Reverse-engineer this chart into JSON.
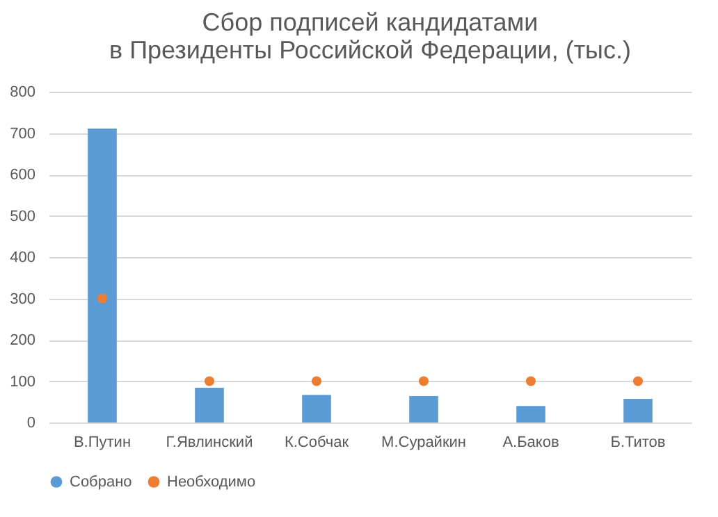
{
  "chart_data": {
    "type": "bar",
    "title": "Сбор подписей кандидатами\nв Президенты Российской Федерации, (тыс.)",
    "categories": [
      "В.Путин",
      "Г.Явлинский",
      "К.Собчак",
      "М.Сурайкин",
      "А.Баков",
      "Б.Титов"
    ],
    "series": [
      {
        "name": "Собрано",
        "color": "#5b9bd5",
        "values": [
          711,
          84,
          67,
          64,
          40,
          57
        ]
      },
      {
        "name": "Необходимо",
        "type": "scatter",
        "color": "#ed7d31",
        "x": [
          "В.Путин",
          "Г.Явлинский",
          "К.Собчак",
          "М.Сурайкин",
          "А.Баков",
          "Б.Титов"
        ],
        "values": [
          300,
          100,
          100,
          100,
          100,
          100
        ]
      }
    ],
    "ylim": [
      0,
      800
    ],
    "yticks": [
      0,
      100,
      200,
      300,
      400,
      500,
      600,
      700,
      800
    ],
    "grid": "y",
    "legend": "bottom",
    "marker": "circle"
  }
}
